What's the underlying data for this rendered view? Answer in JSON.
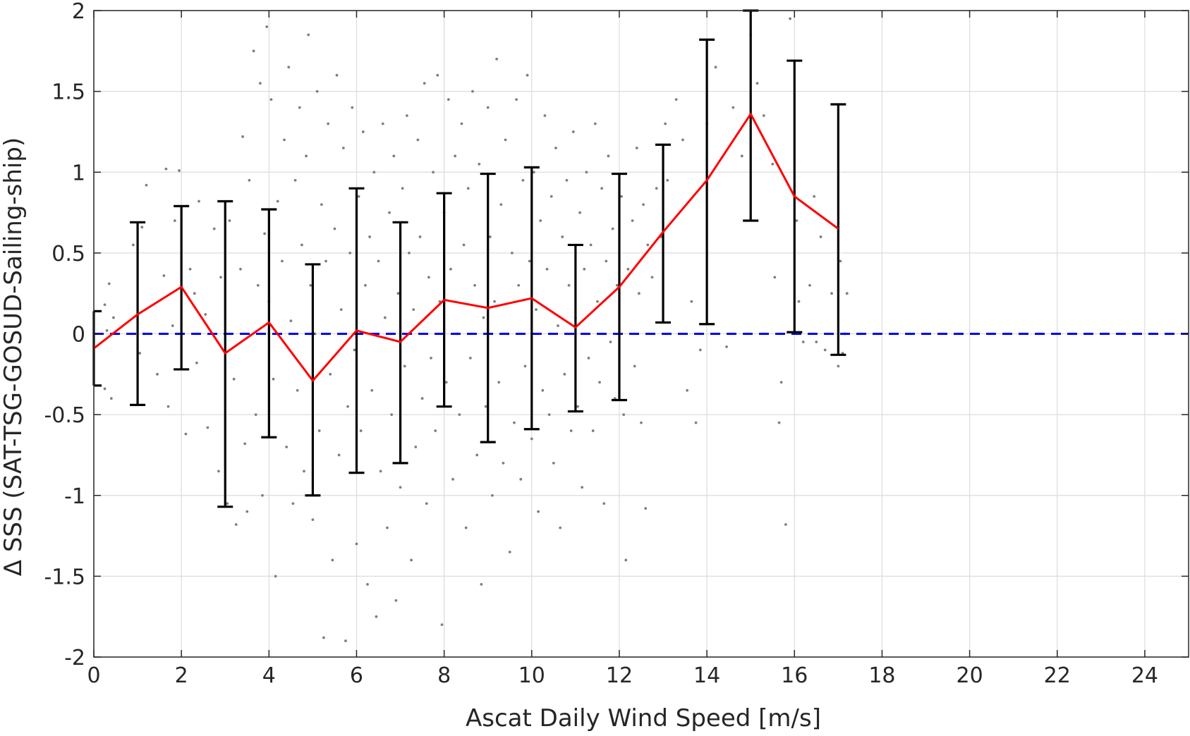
{
  "chart_data": {
    "type": "scatter",
    "title": "",
    "xlabel": "Ascat Daily Wind Speed [m/s]",
    "ylabel": "Δ SSS (SAT-TSG-GOSUD-Sailing-ship)",
    "xlim": [
      0,
      25
    ],
    "ylim": [
      -2,
      2
    ],
    "xticks": [
      "0",
      "2",
      "4",
      "6",
      "8",
      "10",
      "12",
      "14",
      "16",
      "18",
      "20",
      "22",
      "24"
    ],
    "yticks": [
      "-2",
      "-1.5",
      "-1",
      "-0.5",
      "0",
      "0.5",
      "1",
      "1.5",
      "2"
    ],
    "grid": true,
    "legend": "none",
    "reference_line": {
      "y": 0,
      "style": "dashed",
      "color": "#0000ee"
    },
    "colors": {
      "scatter": "#7f7f7f",
      "mean_line": "#ff0000",
      "error_bars": "#000000",
      "grid": "#dcdcdc",
      "axes": "#262626"
    },
    "series": [
      {
        "type": "line",
        "x": [
          0,
          1,
          2,
          3,
          4,
          5,
          6,
          7,
          8,
          9,
          10,
          11,
          12,
          13,
          14,
          15,
          16,
          17
        ],
        "y": [
          -0.09,
          0.12,
          0.29,
          -0.12,
          0.07,
          -0.29,
          0.02,
          -0.05,
          0.21,
          0.16,
          0.22,
          0.04,
          0.29,
          0.63,
          0.95,
          1.36,
          0.85,
          0.65
        ]
      },
      {
        "type": "errorbar",
        "x": [
          0,
          1,
          2,
          3,
          4,
          5,
          6,
          7,
          8,
          9,
          10,
          11,
          12,
          13,
          14,
          15,
          16,
          17
        ],
        "lower": [
          -0.32,
          -0.44,
          -0.22,
          -1.07,
          -0.64,
          -1.0,
          -0.86,
          -0.8,
          -0.45,
          -0.67,
          -0.59,
          -0.48,
          -0.41,
          0.07,
          0.06,
          0.7,
          0.01,
          -0.13
        ],
        "upper": [
          0.14,
          0.69,
          0.79,
          0.82,
          0.77,
          0.43,
          0.9,
          0.69,
          0.87,
          0.99,
          1.03,
          0.55,
          0.99,
          1.17,
          1.82,
          2.0,
          1.69,
          1.42
        ]
      },
      {
        "type": "scatter",
        "points": [
          [
            0.25,
            -0.34
          ],
          [
            0.25,
            0.18
          ],
          [
            0.3,
            0.02
          ],
          [
            0.35,
            0.31
          ],
          [
            0.4,
            -0.4
          ],
          [
            0.45,
            0.1
          ],
          [
            0.9,
            0.55
          ],
          [
            1.05,
            -0.12
          ],
          [
            1.1,
            0.66
          ],
          [
            1.15,
            0.0
          ],
          [
            1.2,
            0.92
          ],
          [
            1.45,
            -0.25
          ],
          [
            1.6,
            0.36
          ],
          [
            1.65,
            1.02
          ],
          [
            1.7,
            -0.45
          ],
          [
            1.8,
            0.05
          ],
          [
            1.85,
            0.7
          ],
          [
            1.95,
            1.01
          ],
          [
            2.1,
            -0.62
          ],
          [
            2.2,
            0.4
          ],
          [
            2.3,
            0.25
          ],
          [
            2.35,
            -0.18
          ],
          [
            2.4,
            0.82
          ],
          [
            2.55,
            0.12
          ],
          [
            2.6,
            -0.58
          ],
          [
            2.75,
            0.65
          ],
          [
            2.85,
            -0.85
          ],
          [
            2.9,
            0.35
          ],
          [
            3.05,
            -1.05
          ],
          [
            3.1,
            0.7
          ],
          [
            3.2,
            -0.28
          ],
          [
            3.25,
            -1.18
          ],
          [
            3.35,
            0.4
          ],
          [
            3.4,
            1.22
          ],
          [
            3.45,
            -0.68
          ],
          [
            3.5,
            -1.1
          ],
          [
            3.55,
            0.95
          ],
          [
            3.65,
            1.75
          ],
          [
            3.7,
            -0.5
          ],
          [
            3.75,
            0.3
          ],
          [
            3.8,
            1.55
          ],
          [
            3.85,
            -1.0
          ],
          [
            3.9,
            0.62
          ],
          [
            3.95,
            1.9
          ],
          [
            4.0,
            0.2
          ],
          [
            4.05,
            1.45
          ],
          [
            4.1,
            -0.28
          ],
          [
            4.15,
            -1.5
          ],
          [
            4.2,
            0.82
          ],
          [
            4.3,
            0.45
          ],
          [
            4.35,
            1.2
          ],
          [
            4.4,
            -0.7
          ],
          [
            4.45,
            1.65
          ],
          [
            4.5,
            0.08
          ],
          [
            4.55,
            -1.05
          ],
          [
            4.6,
            0.95
          ],
          [
            4.65,
            -0.35
          ],
          [
            4.7,
            1.4
          ],
          [
            4.75,
            0.55
          ],
          [
            4.8,
            -0.85
          ],
          [
            4.85,
            1.1
          ],
          [
            4.9,
            1.85
          ],
          [
            4.95,
            0.3
          ],
          [
            5.0,
            -1.15
          ],
          [
            5.05,
            0.0
          ],
          [
            5.1,
            1.5
          ],
          [
            5.15,
            -0.6
          ],
          [
            5.2,
            0.8
          ],
          [
            5.25,
            -1.88
          ],
          [
            5.3,
            0.45
          ],
          [
            5.35,
            1.3
          ],
          [
            5.4,
            -0.25
          ],
          [
            5.45,
            -1.4
          ],
          [
            5.5,
            0.65
          ],
          [
            5.55,
            1.6
          ],
          [
            5.6,
            -0.75
          ],
          [
            5.65,
            0.15
          ],
          [
            5.7,
            1.15
          ],
          [
            5.75,
            -1.9
          ],
          [
            5.8,
            -0.45
          ],
          [
            5.85,
            0.5
          ],
          [
            5.9,
            1.4
          ],
          [
            5.95,
            -0.1
          ],
          [
            6.0,
            -1.3
          ],
          [
            6.05,
            0.85
          ],
          [
            6.1,
            -0.6
          ],
          [
            6.15,
            1.25
          ],
          [
            6.2,
            0.3
          ],
          [
            6.25,
            -1.55
          ],
          [
            6.3,
            0.6
          ],
          [
            6.35,
            -0.35
          ],
          [
            6.4,
            1.0
          ],
          [
            6.45,
            -1.75
          ],
          [
            6.5,
            0.45
          ],
          [
            6.55,
            -0.85
          ],
          [
            6.6,
            1.3
          ],
          [
            6.65,
            0.1
          ],
          [
            6.7,
            -1.2
          ],
          [
            6.75,
            0.75
          ],
          [
            6.8,
            -0.5
          ],
          [
            6.85,
            1.1
          ],
          [
            6.9,
            -1.65
          ],
          [
            6.95,
            0.25
          ],
          [
            7.0,
            -0.95
          ],
          [
            7.05,
            0.9
          ],
          [
            7.1,
            -0.2
          ],
          [
            7.15,
            1.35
          ],
          [
            7.2,
            0.5
          ],
          [
            7.25,
            -1.4
          ],
          [
            7.3,
            0.15
          ],
          [
            7.35,
            -0.7
          ],
          [
            7.4,
            1.2
          ],
          [
            7.45,
            0.6
          ],
          [
            7.5,
            -0.4
          ],
          [
            7.55,
            1.55
          ],
          [
            7.6,
            -1.05
          ],
          [
            7.65,
            0.35
          ],
          [
            7.7,
            -0.15
          ],
          [
            7.75,
            1.0
          ],
          [
            7.8,
            -0.6
          ],
          [
            7.85,
            1.6
          ],
          [
            7.9,
            0.2
          ],
          [
            7.95,
            -1.8
          ],
          [
            8.0,
            0.75
          ],
          [
            8.05,
            -0.3
          ],
          [
            8.1,
            1.45
          ],
          [
            8.15,
            0.4
          ],
          [
            8.2,
            -0.9
          ],
          [
            8.25,
            1.1
          ],
          [
            8.3,
            0.0
          ],
          [
            8.35,
            -0.5
          ],
          [
            8.4,
            1.3
          ],
          [
            8.45,
            0.55
          ],
          [
            8.5,
            -1.2
          ],
          [
            8.55,
            0.9
          ],
          [
            8.6,
            -0.15
          ],
          [
            8.65,
            1.5
          ],
          [
            8.7,
            0.3
          ],
          [
            8.75,
            -0.75
          ],
          [
            8.8,
            1.05
          ],
          [
            8.85,
            -1.55
          ],
          [
            8.9,
            0.1
          ],
          [
            8.95,
            -0.45
          ],
          [
            9.0,
            1.4
          ],
          [
            9.05,
            0.6
          ],
          [
            9.1,
            -1.0
          ],
          [
            9.15,
            0.2
          ],
          [
            9.2,
            1.7
          ],
          [
            9.25,
            -0.3
          ],
          [
            9.3,
            0.8
          ],
          [
            9.35,
            -0.8
          ],
          [
            9.4,
            1.2
          ],
          [
            9.45,
            0.0
          ],
          [
            9.5,
            -1.35
          ],
          [
            9.55,
            0.5
          ],
          [
            9.6,
            -0.55
          ],
          [
            9.65,
            1.45
          ],
          [
            9.7,
            0.3
          ],
          [
            9.75,
            -0.9
          ],
          [
            9.8,
            0.95
          ],
          [
            9.85,
            -0.2
          ],
          [
            9.9,
            1.6
          ],
          [
            9.95,
            0.45
          ],
          [
            10.0,
            -0.65
          ],
          [
            10.05,
            1.0
          ],
          [
            10.1,
            0.15
          ],
          [
            10.15,
            -1.1
          ],
          [
            10.2,
            0.7
          ],
          [
            10.25,
            -0.35
          ],
          [
            10.3,
            1.35
          ],
          [
            10.35,
            0.4
          ],
          [
            10.4,
            -0.5
          ],
          [
            10.45,
            0.85
          ],
          [
            10.5,
            -0.8
          ],
          [
            10.55,
            1.15
          ],
          [
            10.6,
            0.05
          ],
          [
            10.65,
            -1.2
          ],
          [
            10.7,
            0.6
          ],
          [
            10.75,
            -0.25
          ],
          [
            10.8,
            0.95
          ],
          [
            10.85,
            0.3
          ],
          [
            10.9,
            -0.6
          ],
          [
            10.95,
            1.25
          ],
          [
            11.0,
            0.1
          ],
          [
            11.05,
            -0.45
          ],
          [
            11.1,
            0.75
          ],
          [
            11.15,
            -0.95
          ],
          [
            11.2,
            0.4
          ],
          [
            11.25,
            1.0
          ],
          [
            11.3,
            -0.15
          ],
          [
            11.35,
            0.55
          ],
          [
            11.4,
            -0.6
          ],
          [
            11.45,
            1.3
          ],
          [
            11.5,
            0.2
          ],
          [
            11.55,
            -0.3
          ],
          [
            11.6,
            0.9
          ],
          [
            11.65,
            -1.05
          ],
          [
            11.7,
            0.45
          ],
          [
            11.75,
            1.1
          ],
          [
            11.8,
            -0.05
          ],
          [
            11.85,
            0.65
          ],
          [
            11.9,
            -0.4
          ],
          [
            11.95,
            0.3
          ],
          [
            12.05,
            0.85
          ],
          [
            12.1,
            -0.5
          ],
          [
            12.15,
            -1.4
          ],
          [
            12.2,
            0.4
          ],
          [
            12.3,
            0.7
          ],
          [
            12.35,
            -0.2
          ],
          [
            12.4,
            1.15
          ],
          [
            12.45,
            0.25
          ],
          [
            12.5,
            -0.55
          ],
          [
            12.55,
            0.8
          ],
          [
            12.6,
            -1.08
          ],
          [
            12.65,
            0.55
          ],
          [
            12.75,
            0.35
          ],
          [
            12.85,
            0.9
          ],
          [
            12.95,
            0.6
          ],
          [
            13.05,
            1.3
          ],
          [
            13.1,
            0.95
          ],
          [
            13.3,
            1.45
          ],
          [
            13.45,
            1.2
          ],
          [
            13.55,
            -0.35
          ],
          [
            13.65,
            0.2
          ],
          [
            13.75,
            -0.55
          ],
          [
            13.85,
            -0.1
          ],
          [
            14.0,
            1.3
          ],
          [
            14.2,
            1.65
          ],
          [
            14.45,
            -0.08
          ],
          [
            14.6,
            1.4
          ],
          [
            14.8,
            1.1
          ],
          [
            15.0,
            1.85
          ],
          [
            15.15,
            1.55
          ],
          [
            15.3,
            1.35
          ],
          [
            15.5,
            1.05
          ],
          [
            15.55,
            0.35
          ],
          [
            15.65,
            -0.55
          ],
          [
            15.7,
            -0.3
          ],
          [
            15.8,
            -1.18
          ],
          [
            15.9,
            1.95
          ],
          [
            16.05,
            0.7
          ],
          [
            16.1,
            0.2
          ],
          [
            16.2,
            -0.05
          ],
          [
            16.35,
            0.3
          ],
          [
            16.45,
            0.85
          ],
          [
            16.5,
            -0.05
          ],
          [
            16.6,
            0.6
          ],
          [
            16.7,
            -0.1
          ],
          [
            16.85,
            0.25
          ],
          [
            17.0,
            -0.2
          ],
          [
            17.05,
            0.45
          ],
          [
            17.1,
            -0.12
          ],
          [
            17.15,
            0.0
          ],
          [
            17.2,
            0.25
          ]
        ]
      }
    ]
  }
}
